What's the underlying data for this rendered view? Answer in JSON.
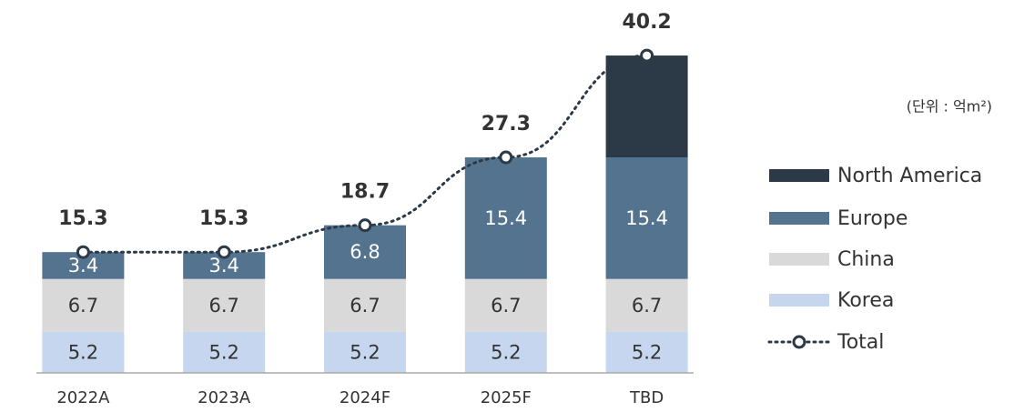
{
  "chart_data": {
    "type": "stacked_bar_line",
    "unit_label": "(단위 : 억m²)",
    "categories": [
      "2022A",
      "2023A",
      "2024F",
      "2025F",
      "TBD"
    ],
    "series": [
      {
        "name": "Korea",
        "color": "#c6d6ee",
        "label_color": "#333333",
        "values": [
          5.2,
          5.2,
          5.2,
          5.2,
          5.2
        ]
      },
      {
        "name": "China",
        "color": "#d9d9d9",
        "label_color": "#333333",
        "values": [
          6.7,
          6.7,
          6.7,
          6.7,
          6.7
        ]
      },
      {
        "name": "Europe",
        "color": "#54738f",
        "label_color": "#ffffff",
        "values": [
          3.4,
          3.4,
          6.8,
          15.4,
          15.4
        ]
      },
      {
        "name": "North America",
        "color": "#2c3a47",
        "show_labels": false,
        "values": [
          null,
          null,
          null,
          null,
          12.9
        ]
      }
    ],
    "line": {
      "name": "Total",
      "color": "#2c3a47",
      "values": [
        15.3,
        15.3,
        18.7,
        27.3,
        40.2
      ]
    },
    "ylim": [
      0,
      45
    ]
  }
}
